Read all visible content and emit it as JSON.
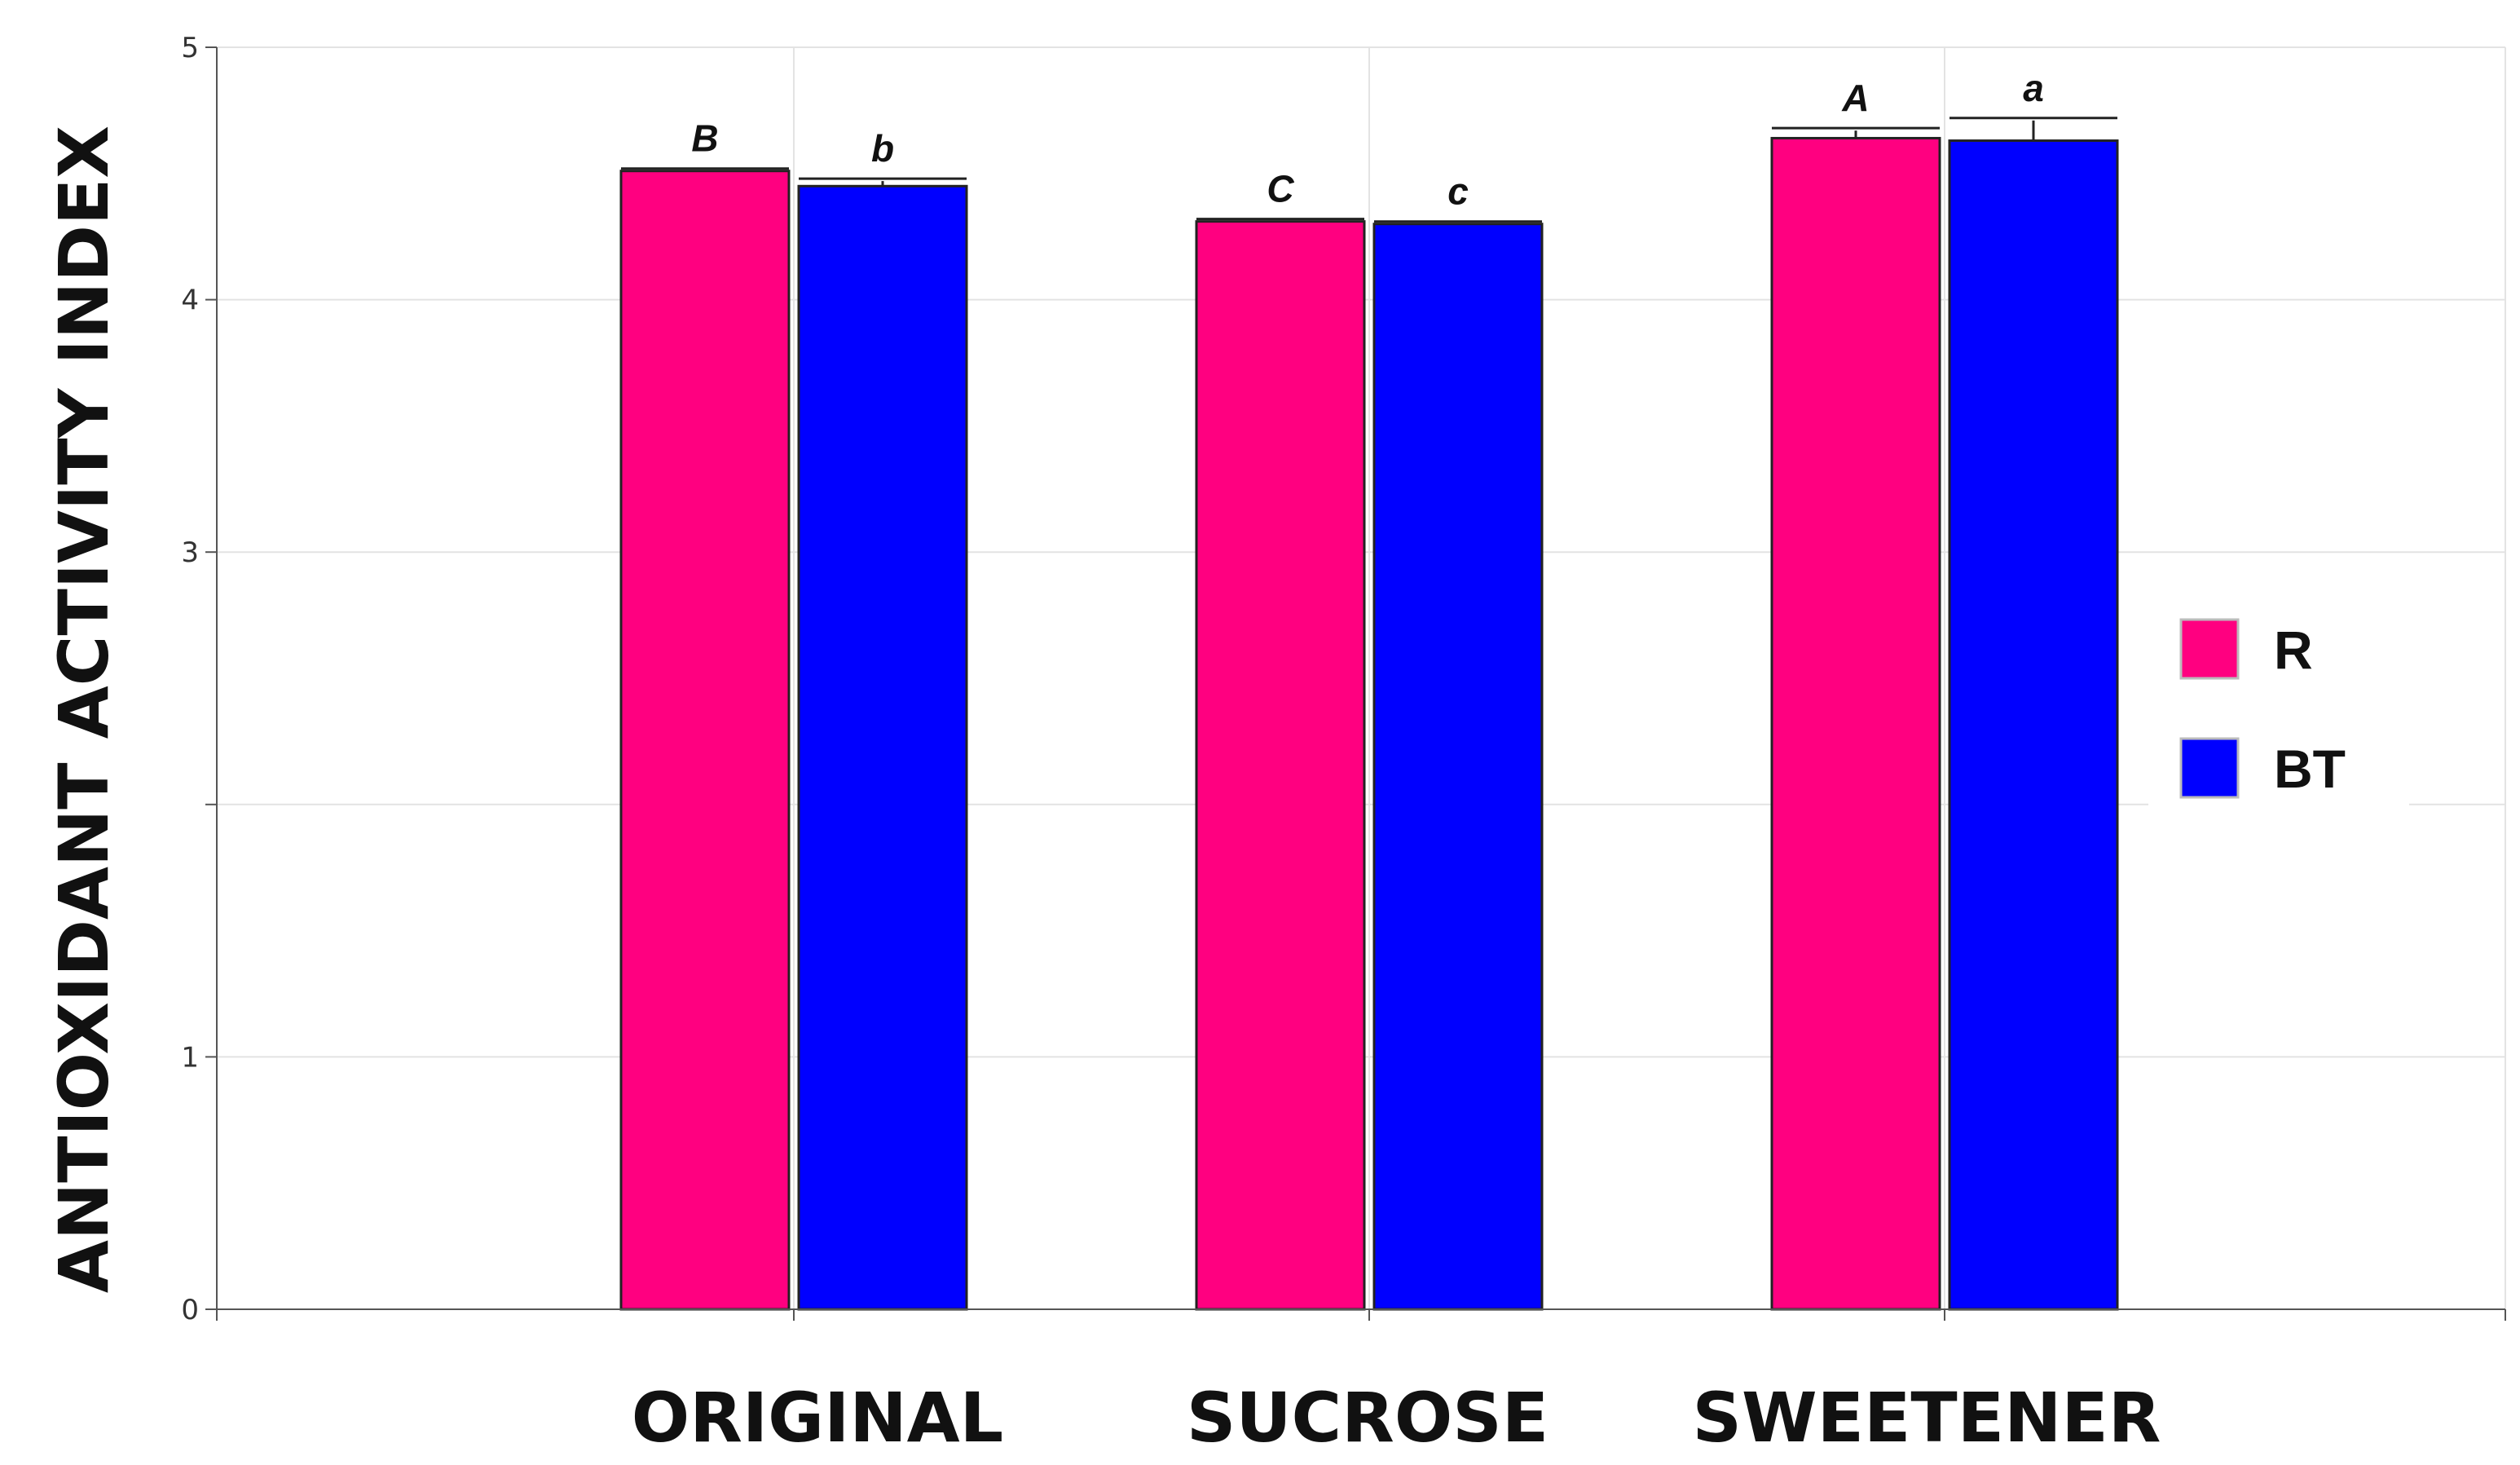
{
  "chart_data": {
    "type": "bar",
    "title": "",
    "xlabel": "",
    "ylabel": "ANTIOXIDANT ACTIVITY INDEX",
    "ylim": [
      0,
      5
    ],
    "yticks": [
      0,
      1,
      2,
      3,
      4,
      5
    ],
    "ytick_labels": [
      "0",
      "1",
      "",
      "3",
      "4",
      "5"
    ],
    "grid": true,
    "categories": [
      "ORIGINAL",
      "SUCROSE",
      "SWEETENER"
    ],
    "series": [
      {
        "name": "R",
        "color": "#FF0080",
        "values": [
          4.51,
          4.31,
          4.64
        ],
        "errors": [
          0.0,
          0.0,
          0.03
        ],
        "significance": [
          "B",
          "C",
          "A"
        ]
      },
      {
        "name": "BT",
        "color": "#0000FF",
        "values": [
          4.45,
          4.3,
          4.63
        ],
        "errors": [
          0.02,
          0.0,
          0.08
        ],
        "significance": [
          "b",
          "c",
          "a"
        ]
      }
    ],
    "legend_position": "right"
  }
}
